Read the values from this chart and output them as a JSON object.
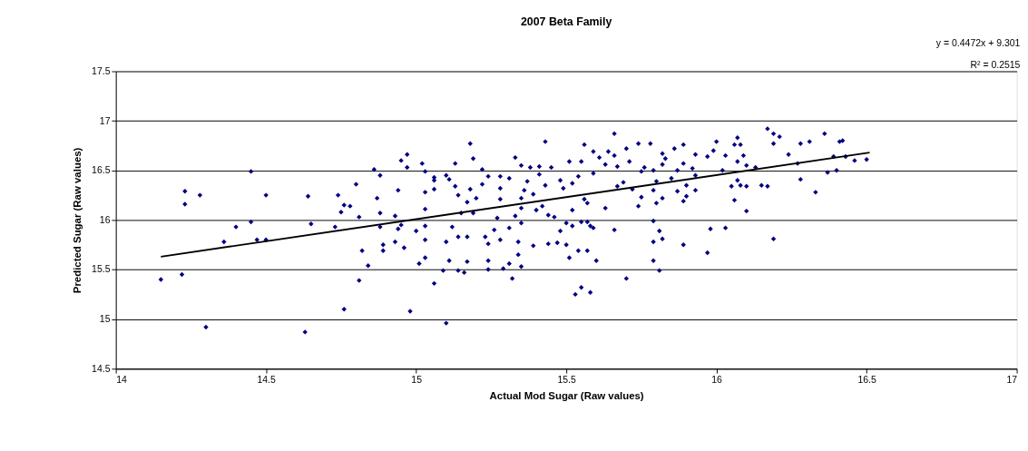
{
  "chart_data": {
    "type": "scatter",
    "title": "2007 Beta Family",
    "xlabel": "Actual Mod Sugar (Raw values)",
    "ylabel": "Predicted Sugar (Raw values)",
    "annotations": [
      "y = 0.4472x + 9.301",
      "R² = 0.2515"
    ],
    "xlim": [
      14,
      17
    ],
    "xticks": [
      14,
      14.5,
      15,
      15.5,
      16,
      16.5,
      17
    ],
    "ylim": [
      14.5,
      17.5
    ],
    "yticks": [
      14.5,
      15,
      15.5,
      16,
      16.5,
      17,
      17.5
    ],
    "grid": "y",
    "series": [
      {
        "type": "scatter",
        "color": "#000080",
        "marker": "diamond",
        "x": [
          14.15,
          14.23,
          14.23,
          14.22,
          14.28,
          14.3,
          14.36,
          14.4,
          14.45,
          14.45,
          14.47,
          14.5,
          14.5,
          14.63,
          14.64,
          14.65,
          14.73,
          14.74,
          14.75,
          14.76,
          14.76,
          14.78,
          14.8,
          14.81,
          14.81,
          14.82,
          14.84,
          14.86,
          14.88,
          14.87,
          14.88,
          14.88,
          14.89,
          14.89,
          14.93,
          14.94,
          14.95,
          14.97,
          14.97,
          14.94,
          14.93,
          14.96,
          14.98,
          14.95,
          15.02,
          15.03,
          15.03,
          15.03,
          15.03,
          15.03,
          15.03,
          15.01,
          15.0,
          15.06,
          15.06,
          15.06,
          15.06,
          15.09,
          15.1,
          15.1,
          15.11,
          15.12,
          15.1,
          15.11,
          15.13,
          15.13,
          15.14,
          15.14,
          15.14,
          15.15,
          15.16,
          15.17,
          15.17,
          15.17,
          15.18,
          15.19,
          15.18,
          15.19,
          15.2,
          15.22,
          15.22,
          15.23,
          15.24,
          15.24,
          15.24,
          15.24,
          15.26,
          15.27,
          15.28,
          15.28,
          15.28,
          15.28,
          15.29,
          15.31,
          15.31,
          15.31,
          15.32,
          15.33,
          15.33,
          15.34,
          15.34,
          15.35,
          15.35,
          15.35,
          15.35,
          15.35,
          15.36,
          15.37,
          15.38,
          15.39,
          15.39,
          15.4,
          15.41,
          15.41,
          15.42,
          15.43,
          15.43,
          15.44,
          15.44,
          15.45,
          15.46,
          15.47,
          15.48,
          15.48,
          15.49,
          15.5,
          15.5,
          15.51,
          15.51,
          15.52,
          15.52,
          15.52,
          15.53,
          15.54,
          15.54,
          15.55,
          15.55,
          15.56,
          15.56,
          15.57,
          15.55,
          15.57,
          15.57,
          15.58,
          15.58,
          15.59,
          15.59,
          15.59,
          15.6,
          15.61,
          15.63,
          15.63,
          15.66,
          15.64,
          15.66,
          15.67,
          15.66,
          15.67,
          15.69,
          15.7,
          15.7,
          15.71,
          15.72,
          15.74,
          15.74,
          15.75,
          15.75,
          15.76,
          15.78,
          15.79,
          15.79,
          15.79,
          15.79,
          15.8,
          15.8,
          15.79,
          15.81,
          15.82,
          15.81,
          15.82,
          15.82,
          15.82,
          15.83,
          15.86,
          15.85,
          15.87,
          15.87,
          15.89,
          15.89,
          15.89,
          15.89,
          15.9,
          15.9,
          15.92,
          15.93,
          15.93,
          15.93,
          15.97,
          15.97,
          15.98,
          15.99,
          16.0,
          16.03,
          16.02,
          16.03,
          16.05,
          16.06,
          16.06,
          16.07,
          16.07,
          16.07,
          16.08,
          16.08,
          16.09,
          16.1,
          16.1,
          16.1,
          16.13,
          16.15,
          16.17,
          16.19,
          16.19,
          16.17,
          16.19,
          16.21,
          16.24,
          16.27,
          16.28,
          16.28,
          16.31,
          16.33,
          16.36,
          16.37,
          16.39,
          16.4,
          16.41,
          16.42,
          16.43,
          16.46,
          16.5
        ],
        "values": [
          15.4,
          16.29,
          16.16,
          15.45,
          16.25,
          14.92,
          15.78,
          15.93,
          16.49,
          15.98,
          15.8,
          15.8,
          16.25,
          14.87,
          16.24,
          15.96,
          15.93,
          16.25,
          16.08,
          15.1,
          16.15,
          16.14,
          16.36,
          16.03,
          15.39,
          15.69,
          15.54,
          16.51,
          16.45,
          16.22,
          16.07,
          15.93,
          15.75,
          15.69,
          16.04,
          16.3,
          16.6,
          16.66,
          16.53,
          15.91,
          15.78,
          15.72,
          15.08,
          15.95,
          16.57,
          16.49,
          16.28,
          16.11,
          15.94,
          15.8,
          15.62,
          15.56,
          15.89,
          16.43,
          16.4,
          16.31,
          15.36,
          15.49,
          14.96,
          15.78,
          15.59,
          15.93,
          16.45,
          16.41,
          16.57,
          16.34,
          15.83,
          15.49,
          16.25,
          16.07,
          15.47,
          15.83,
          16.18,
          15.58,
          16.77,
          16.62,
          16.31,
          16.07,
          16.22,
          16.51,
          16.36,
          15.83,
          15.59,
          15.5,
          15.76,
          16.44,
          15.9,
          16.02,
          15.8,
          16.21,
          16.32,
          16.44,
          15.51,
          16.42,
          15.56,
          15.92,
          15.41,
          16.63,
          16.04,
          15.78,
          15.65,
          15.53,
          16.55,
          16.22,
          16.12,
          15.97,
          16.3,
          16.39,
          16.53,
          15.74,
          16.26,
          16.1,
          16.46,
          16.54,
          16.14,
          16.79,
          16.35,
          16.05,
          15.76,
          16.53,
          16.03,
          15.77,
          15.89,
          16.4,
          16.32,
          15.97,
          15.75,
          15.62,
          16.59,
          16.37,
          16.1,
          15.94,
          15.25,
          16.44,
          15.69,
          15.32,
          16.59,
          16.76,
          16.21,
          16.17,
          15.98,
          15.98,
          15.69,
          15.27,
          15.94,
          15.92,
          16.69,
          16.47,
          15.59,
          16.63,
          16.12,
          16.56,
          16.87,
          16.69,
          16.65,
          16.34,
          15.9,
          16.54,
          16.38,
          15.41,
          16.72,
          16.59,
          16.31,
          16.77,
          16.14,
          16.23,
          16.49,
          16.53,
          16.77,
          16.5,
          15.99,
          15.78,
          15.59,
          16.17,
          16.39,
          16.3,
          15.49,
          15.81,
          15.89,
          16.22,
          16.56,
          16.67,
          16.62,
          16.72,
          16.42,
          16.29,
          16.5,
          16.76,
          16.57,
          16.19,
          15.75,
          16.24,
          16.35,
          16.52,
          16.66,
          16.45,
          16.3,
          15.67,
          16.64,
          15.91,
          16.7,
          16.79,
          15.92,
          16.5,
          16.65,
          16.34,
          16.2,
          16.76,
          16.83,
          16.4,
          16.59,
          16.76,
          16.35,
          16.65,
          16.34,
          16.55,
          16.09,
          16.53,
          16.35,
          16.92,
          16.87,
          16.77,
          16.34,
          15.81,
          16.84,
          16.66,
          16.57,
          16.41,
          16.77,
          16.79,
          16.28,
          16.87,
          16.48,
          16.64,
          16.5,
          16.79,
          16.8,
          16.64,
          16.6,
          16.61
        ]
      },
      {
        "type": "line",
        "color": "#000000",
        "x": [
          14.15,
          16.51
        ],
        "values": [
          15.63,
          16.68
        ]
      }
    ]
  }
}
